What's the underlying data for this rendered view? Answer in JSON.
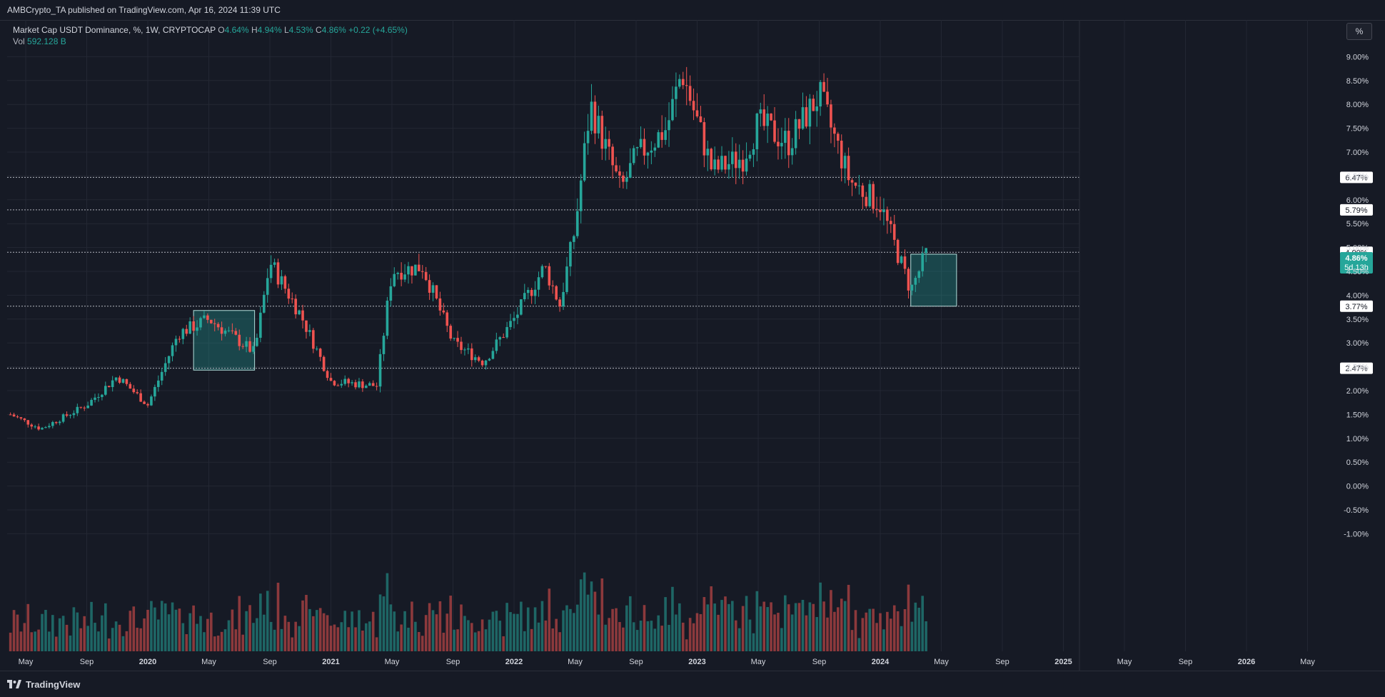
{
  "header": {
    "published_text": "AMBCrypto_TA published on TradingView.com, Apr 16, 2024 11:39 UTC"
  },
  "legend": {
    "symbol": "Market Cap USDT Dominance, %, 1W, CRYPTOCAP",
    "o_key": "O",
    "o_val": "4.64%",
    "h_key": "H",
    "h_val": "4.94%",
    "l_key": "L",
    "l_val": "4.53%",
    "c_key": "C",
    "c_val": "4.86%",
    "change": "+0.22 (+4.65%)",
    "vol_key": "Vol",
    "vol_val": "592.128 B"
  },
  "toolbar": {
    "percent_button": "%"
  },
  "footer": {
    "brand": "TradingView"
  },
  "colors": {
    "up": "#26a69a",
    "down": "#ef5350",
    "grid": "#232733",
    "level_line": "#b2b5be",
    "box_fill": "#26a69a"
  },
  "chart_data": {
    "type": "candlestick",
    "price_axis": {
      "labels": [
        "9.00%",
        "8.50%",
        "8.00%",
        "7.50%",
        "7.00%",
        "6.50%",
        "6.00%",
        "5.50%",
        "5.00%",
        "4.50%",
        "4.00%",
        "3.50%",
        "3.00%",
        "2.50%",
        "2.00%",
        "1.50%",
        "1.00%",
        "0.50%",
        "0.00%",
        "-0.50%",
        "-1.00%"
      ],
      "values": [
        9.0,
        8.5,
        8.0,
        7.5,
        7.0,
        6.5,
        6.0,
        5.5,
        5.0,
        4.5,
        4.0,
        3.5,
        3.0,
        2.5,
        2.0,
        1.5,
        1.0,
        0.5,
        0.0,
        -0.5,
        -1.0
      ]
    },
    "time_axis": {
      "labels": [
        "May",
        "Sep",
        "2020",
        "May",
        "Sep",
        "2021",
        "May",
        "Sep",
        "2022",
        "May",
        "Sep",
        "2023",
        "May",
        "Sep",
        "2024",
        "May",
        "Sep",
        "2025",
        "May",
        "Sep",
        "2026",
        "May"
      ],
      "bold": [
        false,
        false,
        true,
        false,
        false,
        true,
        false,
        false,
        true,
        false,
        false,
        true,
        false,
        false,
        true,
        false,
        false,
        true,
        false,
        false,
        true,
        false
      ]
    },
    "levels": [
      {
        "label": "6.47%",
        "value": 6.47
      },
      {
        "label": "5.79%",
        "value": 5.79
      },
      {
        "label": "4.90%",
        "value": 4.9
      },
      {
        "label": "3.77%",
        "value": 3.77
      },
      {
        "label": "2.47%",
        "value": 2.47
      }
    ],
    "current_price": {
      "label": "4.86%",
      "countdown": "5d 13h",
      "value": 4.86
    },
    "boxes": [
      {
        "from": "2020-04",
        "to": "2020-08",
        "low": 2.43,
        "high": 3.68
      },
      {
        "from": "2024-03",
        "to": "2024-06",
        "low": 3.77,
        "high": 4.86
      }
    ],
    "anchors": [
      {
        "date": "2019-04",
        "close": 1.5
      },
      {
        "date": "2019-06",
        "close": 1.2
      },
      {
        "date": "2019-09",
        "close": 1.7
      },
      {
        "date": "2019-11",
        "close": 2.3
      },
      {
        "date": "2020-01",
        "close": 1.7
      },
      {
        "date": "2020-03",
        "close": 3.2
      },
      {
        "date": "2020-05",
        "close": 3.5
      },
      {
        "date": "2020-08",
        "close": 2.8
      },
      {
        "date": "2020-09",
        "close": 4.7
      },
      {
        "date": "2020-11",
        "close": 3.6
      },
      {
        "date": "2021-01",
        "close": 2.2
      },
      {
        "date": "2021-04",
        "close": 2.1
      },
      {
        "date": "2021-05",
        "close": 4.5
      },
      {
        "date": "2021-07",
        "close": 4.6
      },
      {
        "date": "2021-09",
        "close": 3.0
      },
      {
        "date": "2021-11",
        "close": 2.6
      },
      {
        "date": "2022-01",
        "close": 3.5
      },
      {
        "date": "2022-03",
        "close": 4.6
      },
      {
        "date": "2022-04",
        "close": 3.8
      },
      {
        "date": "2022-05",
        "close": 5.4
      },
      {
        "date": "2022-06",
        "close": 8.0
      },
      {
        "date": "2022-08",
        "close": 6.2
      },
      {
        "date": "2022-09",
        "close": 6.9
      },
      {
        "date": "2022-11",
        "close": 7.5
      },
      {
        "date": "2022-12",
        "close": 8.7
      },
      {
        "date": "2023-02",
        "close": 6.6
      },
      {
        "date": "2023-04",
        "close": 6.9
      },
      {
        "date": "2023-05",
        "close": 7.6
      },
      {
        "date": "2023-07",
        "close": 7.2
      },
      {
        "date": "2023-09",
        "close": 8.2
      },
      {
        "date": "2023-11",
        "close": 6.4
      },
      {
        "date": "2024-01",
        "close": 5.9
      },
      {
        "date": "2024-03",
        "close": 4.1
      },
      {
        "date": "2024-04",
        "close": 4.86
      }
    ]
  }
}
